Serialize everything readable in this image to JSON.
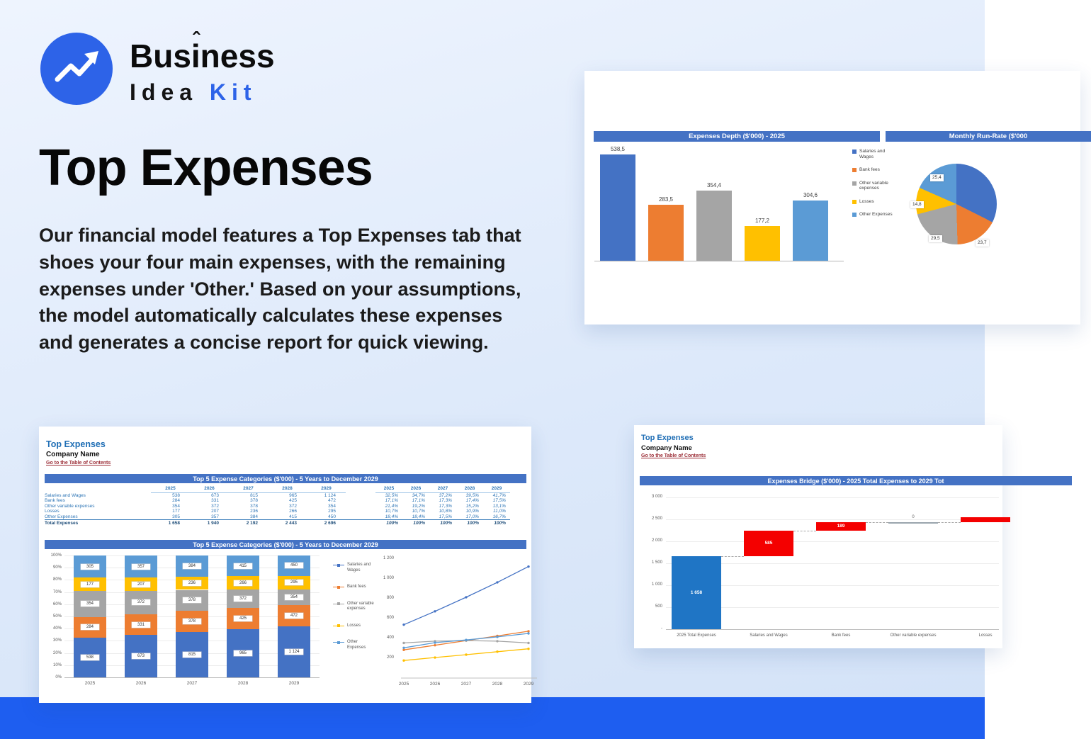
{
  "logo": {
    "word1": "Business",
    "caret": "ˆ",
    "word2": "Idea",
    "word3": "Kit"
  },
  "hero": {
    "title": "Top Expenses",
    "body": "Our financial model features a Top Expenses tab that shoes your four main expenses, with the remaining expenses under 'Other.' Based on your assumptions, the model automatically calculates these expenses and generates a concise report for quick viewing."
  },
  "palette": {
    "s1": "#4472c4",
    "s2": "#ed7d31",
    "s3": "#a5a5a5",
    "s4": "#ffc000",
    "s5": "#5b9bd5",
    "red": "#f40000",
    "bridge_blue": "#1f75c5",
    "band_blue": "#4472c4",
    "sheet_blue": "#1f6eb5",
    "link_red": "#9c2f38",
    "accent_blue": "#2d63e8",
    "band_bottom": "#1e5ef0"
  },
  "series_names": [
    "Salaries and Wages",
    "Bank fees",
    "Other variable expenses",
    "Losses",
    "Other Expenses"
  ],
  "depth_chart": {
    "type": "bar",
    "title": "Expenses Depth ($'000) - 2025",
    "labels": [
      "538,5",
      "283,5",
      "354,4",
      "177,2",
      "304,6"
    ],
    "values": [
      538.5,
      283.5,
      354.4,
      177.2,
      304.6
    ]
  },
  "runrate_pie": {
    "type": "pie",
    "title": "Monthly Run-Rate ($'000",
    "values": [
      44.8,
      23.7,
      29.5,
      14.8,
      25.4
    ],
    "labels": [
      "25,4",
      "14,8",
      "29,5",
      "23,7"
    ]
  },
  "sheet": {
    "app_title": "Top Expenses",
    "company": "Company Name",
    "toc_link": "Go to the Table of Contents",
    "band1": "Top 5 Expense Categories ($'000) - 5 Years to December 2029",
    "years": [
      "2025",
      "2026",
      "2027",
      "2028",
      "2029"
    ],
    "rows": [
      {
        "label": "Salaries and Wages",
        "values": [
          "538",
          "673",
          "815",
          "965",
          "1 124"
        ],
        "pcts": [
          "32,5%",
          "34,7%",
          "37,2%",
          "39,5%",
          "41,7%"
        ]
      },
      {
        "label": "Bank fees",
        "values": [
          "284",
          "331",
          "378",
          "425",
          "472"
        ],
        "pcts": [
          "17,1%",
          "17,1%",
          "17,3%",
          "17,4%",
          "17,5%"
        ]
      },
      {
        "label": "Other variable expenses",
        "values": [
          "354",
          "372",
          "378",
          "372",
          "354"
        ],
        "pcts": [
          "21,4%",
          "19,2%",
          "17,3%",
          "15,2%",
          "13,1%"
        ]
      },
      {
        "label": "Losses",
        "values": [
          "177",
          "207",
          "236",
          "266",
          "295"
        ],
        "pcts": [
          "10,7%",
          "10,7%",
          "10,8%",
          "10,9%",
          "11,0%"
        ]
      },
      {
        "label": "Other Expenses",
        "values": [
          "305",
          "357",
          "384",
          "415",
          "450"
        ],
        "pcts": [
          "18,4%",
          "18,4%",
          "17,5%",
          "17,0%",
          "16,7%"
        ]
      }
    ],
    "total": {
      "label": "Total Expenses",
      "values": [
        "1 658",
        "1 940",
        "2 192",
        "2 443",
        "2 696"
      ],
      "pcts": [
        "100%",
        "100%",
        "100%",
        "100%",
        "100%"
      ]
    }
  },
  "stacked_chart": {
    "type": "bar",
    "title": "Top 5 Expense Categories ($'000) - 5 Years to December 2029",
    "categories": [
      "2025",
      "2026",
      "2027",
      "2028",
      "2029"
    ],
    "y_ticks": [
      "100%",
      "90%",
      "80%",
      "70%",
      "60%",
      "50%",
      "40%",
      "30%",
      "20%",
      "10%",
      "0%"
    ],
    "series": [
      {
        "name": "Salaries and Wages",
        "pcts": [
          32.5,
          34.7,
          37.2,
          39.5,
          41.7
        ],
        "labels": [
          "538",
          "673",
          "815",
          "965",
          "1 124"
        ]
      },
      {
        "name": "Bank fees",
        "pcts": [
          17.1,
          17.1,
          17.3,
          17.4,
          17.5
        ],
        "labels": [
          "284",
          "331",
          "378",
          "425",
          "472"
        ]
      },
      {
        "name": "Other variable expenses",
        "pcts": [
          21.4,
          19.2,
          17.3,
          15.2,
          13.1
        ],
        "labels": [
          "354",
          "372",
          "378",
          "372",
          "354"
        ]
      },
      {
        "name": "Losses",
        "pcts": [
          10.7,
          10.7,
          10.8,
          10.9,
          11.0
        ],
        "labels": [
          "177",
          "207",
          "236",
          "266",
          "295"
        ]
      },
      {
        "name": "Other Expenses",
        "pcts": [
          18.4,
          18.4,
          17.5,
          17.0,
          16.7
        ],
        "labels": [
          "305",
          "357",
          "384",
          "415",
          "450"
        ]
      }
    ]
  },
  "line_chart": {
    "type": "line",
    "y_ticks": [
      "1 200",
      "1 000",
      "800",
      "600",
      "400",
      "200"
    ],
    "y_max": 1200,
    "x": [
      "2025",
      "2026",
      "2027",
      "2028",
      "2029"
    ],
    "series": [
      {
        "name": "Salaries and Wages",
        "values": [
          538,
          673,
          815,
          965,
          1124
        ]
      },
      {
        "name": "Bank fees",
        "values": [
          284,
          331,
          378,
          425,
          472
        ]
      },
      {
        "name": "Other variable expenses",
        "values": [
          354,
          372,
          378,
          372,
          354
        ]
      },
      {
        "name": "Losses",
        "values": [
          177,
          207,
          236,
          266,
          295
        ]
      },
      {
        "name": "Other Expenses",
        "values": [
          305,
          357,
          384,
          415,
          450
        ]
      }
    ]
  },
  "bridge": {
    "type": "bar",
    "app_title": "Top Expenses",
    "company": "Company Name",
    "toc_link": "Go to the Table of Contents",
    "band": "Expenses Bridge ($'000) - 2025 Total Expenses to 2029 Tot",
    "y_ticks": [
      "3 000",
      "2 500",
      "2 000",
      "1 500",
      "1 000",
      "500",
      "-"
    ],
    "y_max": 3000,
    "steps": [
      {
        "label": "2025 Total Expenses",
        "value": 1658,
        "bar_label": "1 658",
        "kind": "total"
      },
      {
        "label": "Salaries and Wages",
        "value": 585,
        "bar_label": "585",
        "kind": "increase"
      },
      {
        "label": "Bank fees",
        "value": 189,
        "bar_label": "189",
        "kind": "increase"
      },
      {
        "label": "Other variable expenses",
        "value": 0,
        "bar_label": "0",
        "kind": "zero"
      },
      {
        "label": "Losses",
        "value": 118,
        "bar_label": "",
        "kind": "increase"
      }
    ]
  }
}
